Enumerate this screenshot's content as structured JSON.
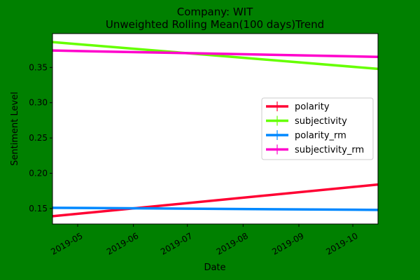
{
  "page": {
    "background": "#008000"
  },
  "chart_data": {
    "type": "line",
    "title": "Company: WIT",
    "subtitle": "Unweighted Rolling Mean(100 days)Trend",
    "xlabel": "Date",
    "ylabel": "Sentiment Level",
    "x_range": [
      "2019-04-17",
      "2019-10-15"
    ],
    "ylim": [
      0.128,
      0.398
    ],
    "x_ticks": [
      "2019-05",
      "2019-06",
      "2019-07",
      "2019-08",
      "2019-09",
      "2019-10"
    ],
    "y_ticks": [
      "0.15",
      "0.20",
      "0.25",
      "0.30",
      "0.35"
    ],
    "grid": false,
    "legend_position": "center-right",
    "series": [
      {
        "name": "polarity",
        "color": "#ff0033",
        "x": [
          "2019-04-17",
          "2019-10-15"
        ],
        "values": [
          0.139,
          0.184
        ]
      },
      {
        "name": "subjectivity",
        "color": "#66ff00",
        "x": [
          "2019-04-17",
          "2019-10-15"
        ],
        "values": [
          0.386,
          0.348
        ]
      },
      {
        "name": "polarity_rm",
        "color": "#0088ff",
        "x": [
          "2019-04-17",
          "2019-10-15"
        ],
        "values": [
          0.151,
          0.148
        ]
      },
      {
        "name": "subjectivity_rm",
        "color": "#ff00cc",
        "x": [
          "2019-04-17",
          "2019-10-15"
        ],
        "values": [
          0.374,
          0.365
        ]
      }
    ]
  }
}
